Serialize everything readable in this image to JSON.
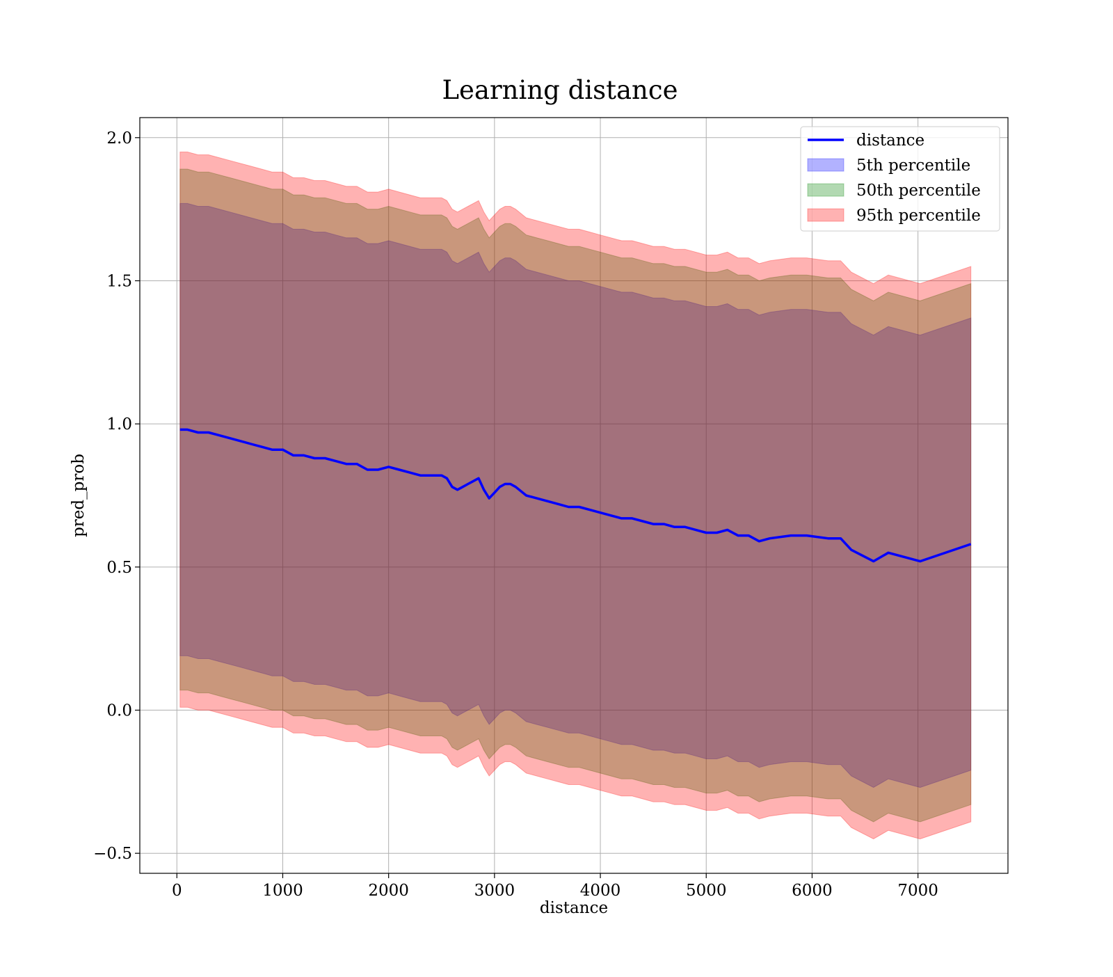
{
  "chart_data": {
    "type": "area",
    "title": "Learning distance",
    "xlabel": "distance",
    "ylabel": "pred_prob",
    "xlim": [
      -350,
      7850
    ],
    "ylim": [
      -0.57,
      2.07
    ],
    "xticks": [
      0,
      1000,
      2000,
      3000,
      4000,
      5000,
      6000,
      7000
    ],
    "xtick_labels": [
      "0",
      "1000",
      "2000",
      "3000",
      "4000",
      "5000",
      "6000",
      "7000"
    ],
    "yticks": [
      -0.5,
      0.0,
      0.5,
      1.0,
      1.5,
      2.0
    ],
    "ytick_labels": [
      "−0.5",
      "0.0",
      "0.5",
      "1.0",
      "1.5",
      "2.0"
    ],
    "grid": true,
    "legend_position": "top-right",
    "legend": [
      "distance",
      "5th percentile",
      "50th percentile",
      "95th percentile"
    ],
    "colors": {
      "line": "#0000ff",
      "band_5th": "#0000ff",
      "band_50th": "#008000",
      "band_95th": "#ff0000",
      "grid": "#b0b0b0"
    },
    "x": [
      30,
      100,
      200,
      300,
      400,
      500,
      600,
      700,
      800,
      900,
      1000,
      1100,
      1200,
      1300,
      1400,
      1500,
      1600,
      1700,
      1800,
      1900,
      2000,
      2100,
      2200,
      2300,
      2400,
      2500,
      2550,
      2600,
      2650,
      2700,
      2750,
      2800,
      2850,
      2900,
      2950,
      3000,
      3050,
      3100,
      3150,
      3200,
      3300,
      3400,
      3500,
      3600,
      3700,
      3800,
      3900,
      4000,
      4100,
      4200,
      4300,
      4400,
      4500,
      4600,
      4700,
      4800,
      4900,
      5000,
      5100,
      5200,
      5300,
      5400,
      5500,
      5600,
      5800,
      5950,
      6150,
      6270,
      6370,
      6580,
      6720,
      7020,
      7500
    ],
    "series": [
      {
        "name": "distance",
        "values": [
          0.98,
          0.98,
          0.97,
          0.97,
          0.96,
          0.95,
          0.94,
          0.93,
          0.92,
          0.91,
          0.91,
          0.89,
          0.89,
          0.88,
          0.88,
          0.87,
          0.86,
          0.86,
          0.84,
          0.84,
          0.85,
          0.84,
          0.83,
          0.82,
          0.82,
          0.82,
          0.81,
          0.78,
          0.77,
          0.78,
          0.79,
          0.8,
          0.81,
          0.77,
          0.74,
          0.76,
          0.78,
          0.79,
          0.79,
          0.78,
          0.75,
          0.74,
          0.73,
          0.72,
          0.71,
          0.71,
          0.7,
          0.69,
          0.68,
          0.67,
          0.67,
          0.66,
          0.65,
          0.65,
          0.64,
          0.64,
          0.63,
          0.62,
          0.62,
          0.63,
          0.61,
          0.61,
          0.59,
          0.6,
          0.61,
          0.61,
          0.6,
          0.6,
          0.56,
          0.52,
          0.55,
          0.52,
          0.58
        ]
      },
      {
        "name": "5th percentile",
        "upper": [
          1.77,
          1.77,
          1.76,
          1.76,
          1.75,
          1.74,
          1.73,
          1.72,
          1.71,
          1.7,
          1.7,
          1.68,
          1.68,
          1.67,
          1.67,
          1.66,
          1.65,
          1.65,
          1.63,
          1.63,
          1.64,
          1.63,
          1.62,
          1.61,
          1.61,
          1.61,
          1.6,
          1.57,
          1.56,
          1.57,
          1.58,
          1.59,
          1.6,
          1.56,
          1.53,
          1.55,
          1.57,
          1.58,
          1.58,
          1.57,
          1.54,
          1.53,
          1.52,
          1.51,
          1.5,
          1.5,
          1.49,
          1.48,
          1.47,
          1.46,
          1.46,
          1.45,
          1.44,
          1.44,
          1.43,
          1.43,
          1.42,
          1.41,
          1.41,
          1.42,
          1.4,
          1.4,
          1.38,
          1.39,
          1.4,
          1.4,
          1.39,
          1.39,
          1.35,
          1.31,
          1.34,
          1.31,
          1.37
        ],
        "lower": [
          0.19,
          0.19,
          0.18,
          0.18,
          0.17,
          0.16,
          0.15,
          0.14,
          0.13,
          0.12,
          0.12,
          0.1,
          0.1,
          0.09,
          0.09,
          0.08,
          0.07,
          0.07,
          0.05,
          0.05,
          0.06,
          0.05,
          0.04,
          0.03,
          0.03,
          0.03,
          0.02,
          -0.01,
          -0.02,
          -0.01,
          0.0,
          0.01,
          0.02,
          -0.02,
          -0.05,
          -0.03,
          -0.01,
          0.0,
          0.0,
          -0.01,
          -0.04,
          -0.05,
          -0.06,
          -0.07,
          -0.08,
          -0.08,
          -0.09,
          -0.1,
          -0.11,
          -0.12,
          -0.12,
          -0.13,
          -0.14,
          -0.14,
          -0.15,
          -0.15,
          -0.16,
          -0.17,
          -0.17,
          -0.16,
          -0.18,
          -0.18,
          -0.2,
          -0.19,
          -0.18,
          -0.18,
          -0.19,
          -0.19,
          -0.23,
          -0.27,
          -0.24,
          -0.27,
          -0.21
        ]
      },
      {
        "name": "50th percentile",
        "upper": [
          1.89,
          1.89,
          1.88,
          1.88,
          1.87,
          1.86,
          1.85,
          1.84,
          1.83,
          1.82,
          1.82,
          1.8,
          1.8,
          1.79,
          1.79,
          1.78,
          1.77,
          1.77,
          1.75,
          1.75,
          1.76,
          1.75,
          1.74,
          1.73,
          1.73,
          1.73,
          1.72,
          1.69,
          1.68,
          1.69,
          1.7,
          1.71,
          1.72,
          1.68,
          1.65,
          1.67,
          1.69,
          1.7,
          1.7,
          1.69,
          1.66,
          1.65,
          1.64,
          1.63,
          1.62,
          1.62,
          1.61,
          1.6,
          1.59,
          1.58,
          1.58,
          1.57,
          1.56,
          1.56,
          1.55,
          1.55,
          1.54,
          1.53,
          1.53,
          1.54,
          1.52,
          1.52,
          1.5,
          1.51,
          1.52,
          1.52,
          1.51,
          1.51,
          1.47,
          1.43,
          1.46,
          1.43,
          1.49
        ],
        "lower": [
          0.07,
          0.07,
          0.06,
          0.06,
          0.05,
          0.04,
          0.03,
          0.02,
          0.01,
          0.0,
          0.0,
          -0.02,
          -0.02,
          -0.03,
          -0.03,
          -0.04,
          -0.05,
          -0.05,
          -0.07,
          -0.07,
          -0.06,
          -0.07,
          -0.08,
          -0.09,
          -0.09,
          -0.09,
          -0.1,
          -0.13,
          -0.14,
          -0.13,
          -0.12,
          -0.11,
          -0.1,
          -0.14,
          -0.17,
          -0.15,
          -0.13,
          -0.12,
          -0.12,
          -0.13,
          -0.16,
          -0.17,
          -0.18,
          -0.19,
          -0.2,
          -0.2,
          -0.21,
          -0.22,
          -0.23,
          -0.24,
          -0.24,
          -0.25,
          -0.26,
          -0.26,
          -0.27,
          -0.27,
          -0.28,
          -0.29,
          -0.29,
          -0.28,
          -0.3,
          -0.3,
          -0.32,
          -0.31,
          -0.3,
          -0.3,
          -0.31,
          -0.31,
          -0.35,
          -0.39,
          -0.36,
          -0.39,
          -0.33
        ]
      },
      {
        "name": "95th percentile",
        "upper": [
          1.95,
          1.95,
          1.94,
          1.94,
          1.93,
          1.92,
          1.91,
          1.9,
          1.89,
          1.88,
          1.88,
          1.86,
          1.86,
          1.85,
          1.85,
          1.84,
          1.83,
          1.83,
          1.81,
          1.81,
          1.82,
          1.81,
          1.8,
          1.79,
          1.79,
          1.79,
          1.78,
          1.75,
          1.74,
          1.75,
          1.76,
          1.77,
          1.78,
          1.74,
          1.71,
          1.73,
          1.75,
          1.76,
          1.76,
          1.75,
          1.72,
          1.71,
          1.7,
          1.69,
          1.68,
          1.68,
          1.67,
          1.66,
          1.65,
          1.64,
          1.64,
          1.63,
          1.62,
          1.62,
          1.61,
          1.61,
          1.6,
          1.59,
          1.59,
          1.6,
          1.58,
          1.58,
          1.56,
          1.57,
          1.58,
          1.58,
          1.57,
          1.57,
          1.53,
          1.49,
          1.52,
          1.49,
          1.55
        ],
        "lower": [
          0.01,
          0.01,
          0.0,
          0.0,
          -0.01,
          -0.02,
          -0.03,
          -0.04,
          -0.05,
          -0.06,
          -0.06,
          -0.08,
          -0.08,
          -0.09,
          -0.09,
          -0.1,
          -0.11,
          -0.11,
          -0.13,
          -0.13,
          -0.12,
          -0.13,
          -0.14,
          -0.15,
          -0.15,
          -0.15,
          -0.16,
          -0.19,
          -0.2,
          -0.19,
          -0.18,
          -0.17,
          -0.16,
          -0.2,
          -0.23,
          -0.21,
          -0.19,
          -0.18,
          -0.18,
          -0.19,
          -0.22,
          -0.23,
          -0.24,
          -0.25,
          -0.26,
          -0.26,
          -0.27,
          -0.28,
          -0.29,
          -0.3,
          -0.3,
          -0.31,
          -0.32,
          -0.32,
          -0.33,
          -0.33,
          -0.34,
          -0.35,
          -0.35,
          -0.34,
          -0.36,
          -0.36,
          -0.38,
          -0.37,
          -0.36,
          -0.36,
          -0.37,
          -0.37,
          -0.41,
          -0.45,
          -0.42,
          -0.45,
          -0.39
        ]
      }
    ]
  }
}
